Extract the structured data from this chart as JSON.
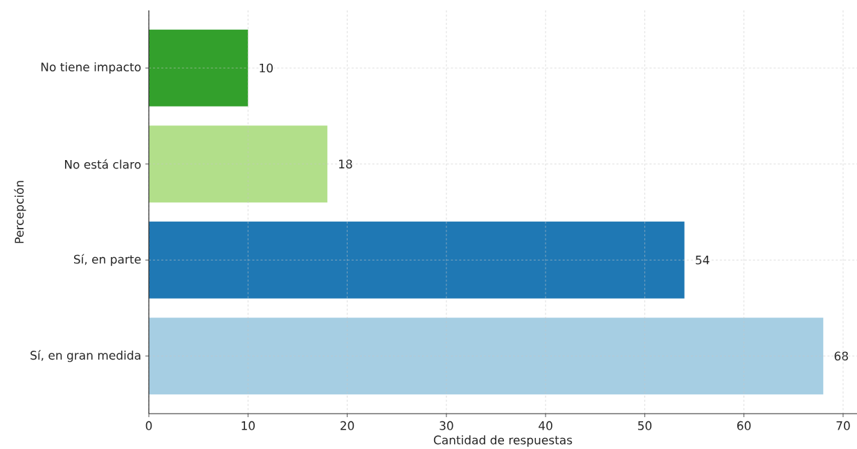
{
  "chart_data": {
    "type": "bar",
    "orientation": "horizontal",
    "xlabel": "Cantidad de respuestas",
    "ylabel": "Percepción",
    "categories": [
      "No tiene impacto",
      "No está claro",
      "Sí, en parte",
      "Sí, en gran medida"
    ],
    "values": [
      10,
      18,
      54,
      68
    ],
    "colors": [
      "#33a02c",
      "#b2df8a",
      "#1f78b4",
      "#a6cee3"
    ],
    "xlim": [
      0,
      71.4
    ],
    "xticks": [
      0,
      10,
      20,
      30,
      40,
      50,
      60,
      70
    ],
    "grid": true,
    "data_labels": true
  }
}
